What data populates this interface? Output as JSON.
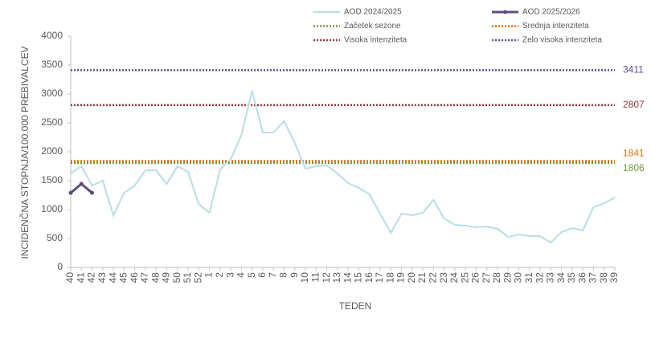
{
  "chart_data": {
    "type": "line",
    "x_label": "TEDEN",
    "y_label": "INCIDENČNA  STOPNJA/100.000  PREBIVALCEV",
    "categories": [
      "40",
      "41",
      "42",
      "43",
      "44",
      "45",
      "46",
      "47",
      "48",
      "49",
      "50",
      "51",
      "52",
      "1",
      "2",
      "3",
      "4",
      "5",
      "6",
      "7",
      "8",
      "9",
      "10",
      "11",
      "12",
      "13",
      "14",
      "15",
      "16",
      "17",
      "18",
      "19",
      "20",
      "21",
      "22",
      "23",
      "24",
      "25",
      "26",
      "27",
      "28",
      "29",
      "30",
      "31",
      "32",
      "33",
      "34",
      "35",
      "36",
      "37",
      "38",
      "39"
    ],
    "series": [
      {
        "name": "AOD 2024/2025",
        "color": "#b7dde8",
        "values": [
          1625,
          1750,
          1417,
          1500,
          900,
          1290,
          1417,
          1680,
          1680,
          1444,
          1750,
          1653,
          1097,
          944,
          1694,
          1875,
          2292,
          3056,
          2333,
          2333,
          2528,
          2153,
          1708,
          1750,
          1764,
          1625,
          1458,
          1375,
          1264,
          930,
          597,
          930,
          903,
          944,
          1167,
          847,
          736,
          722,
          694,
          708,
          667,
          528,
          569,
          542,
          542,
          430,
          611,
          681,
          639,
          1042,
          1111,
          1208
        ]
      },
      {
        "name": "AOD 2025/2026",
        "color": "#5f4b7b",
        "markers": true,
        "values": [
          1290,
          1444,
          1290,
          null,
          null,
          null,
          null,
          null,
          null,
          null,
          null,
          null,
          null,
          null,
          null,
          null,
          null,
          null,
          null,
          null,
          null,
          null,
          null,
          null,
          null,
          null,
          null,
          null,
          null,
          null,
          null,
          null,
          null,
          null,
          null,
          null,
          null,
          null,
          null,
          null,
          null,
          null,
          null,
          null,
          null,
          null,
          null,
          null,
          null,
          null,
          null,
          null
        ]
      }
    ],
    "thresholds": [
      {
        "name": "Začetek sezone",
        "color": "#77933c",
        "value": 1806
      },
      {
        "name": "Srednja intenziteta",
        "color": "#e46c0a",
        "value": 1841
      },
      {
        "name": "Visoka intenziteta",
        "color": "#953735",
        "value": 2807
      },
      {
        "name": "Zelo visoka intenziteta",
        "color": "#604a9b",
        "value": 3411
      }
    ],
    "ylim": [
      0,
      4000
    ],
    "yticks": [
      0,
      500,
      1000,
      1500,
      2000,
      2500,
      3000,
      3500,
      4000
    ]
  }
}
